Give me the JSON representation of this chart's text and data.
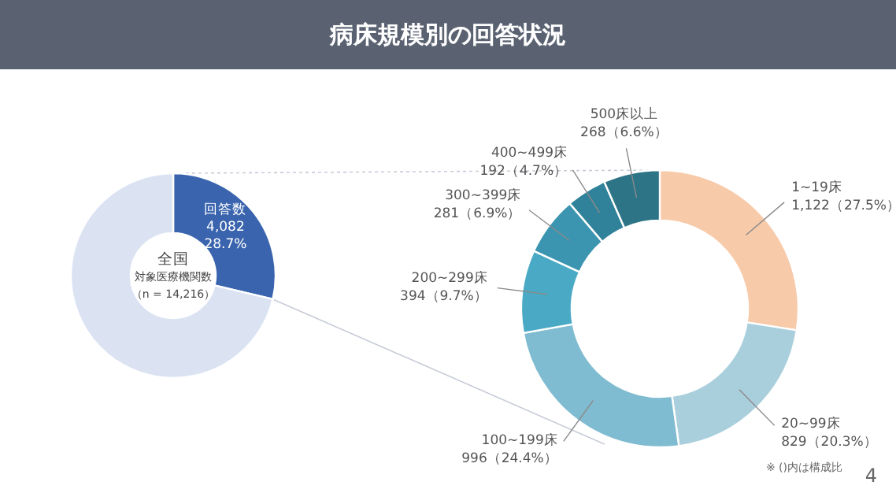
{
  "chart_data": [
    {
      "type": "donut",
      "title": "病床規模別の回答状況",
      "categories": [
        "回答数",
        null
      ],
      "values": [
        28.7,
        71.3
      ],
      "colors": [
        "#3a64ae",
        "#dbe3f3"
      ],
      "value_labels": [
        "4,082\n28.7%",
        null
      ],
      "annotations": [
        "全国",
        "対象医療機関数",
        "（n = 14,216）"
      ]
    },
    {
      "type": "donut",
      "categories": [
        "1~19床",
        "20~99床",
        "100~199床",
        "200~299床",
        "300~399床",
        "400~499床",
        "500床以上"
      ],
      "values": [
        1122,
        829,
        996,
        394,
        281,
        192,
        268
      ],
      "colors": [
        "#f7caa9",
        "#a9cfdd",
        "#80bcd1",
        "#4aaac5",
        "#3b95b0",
        "#30829a",
        "#2e7487"
      ],
      "value_labels": [
        "1,122（27.5%）",
        "829（20.3%）",
        "996（24.4%）",
        "394（9.7%）",
        "281（6.9%）",
        "192（4.7%）",
        "268（6.6%）"
      ],
      "annotations": [
        "※ ()内は構成比",
        "4"
      ]
    }
  ]
}
